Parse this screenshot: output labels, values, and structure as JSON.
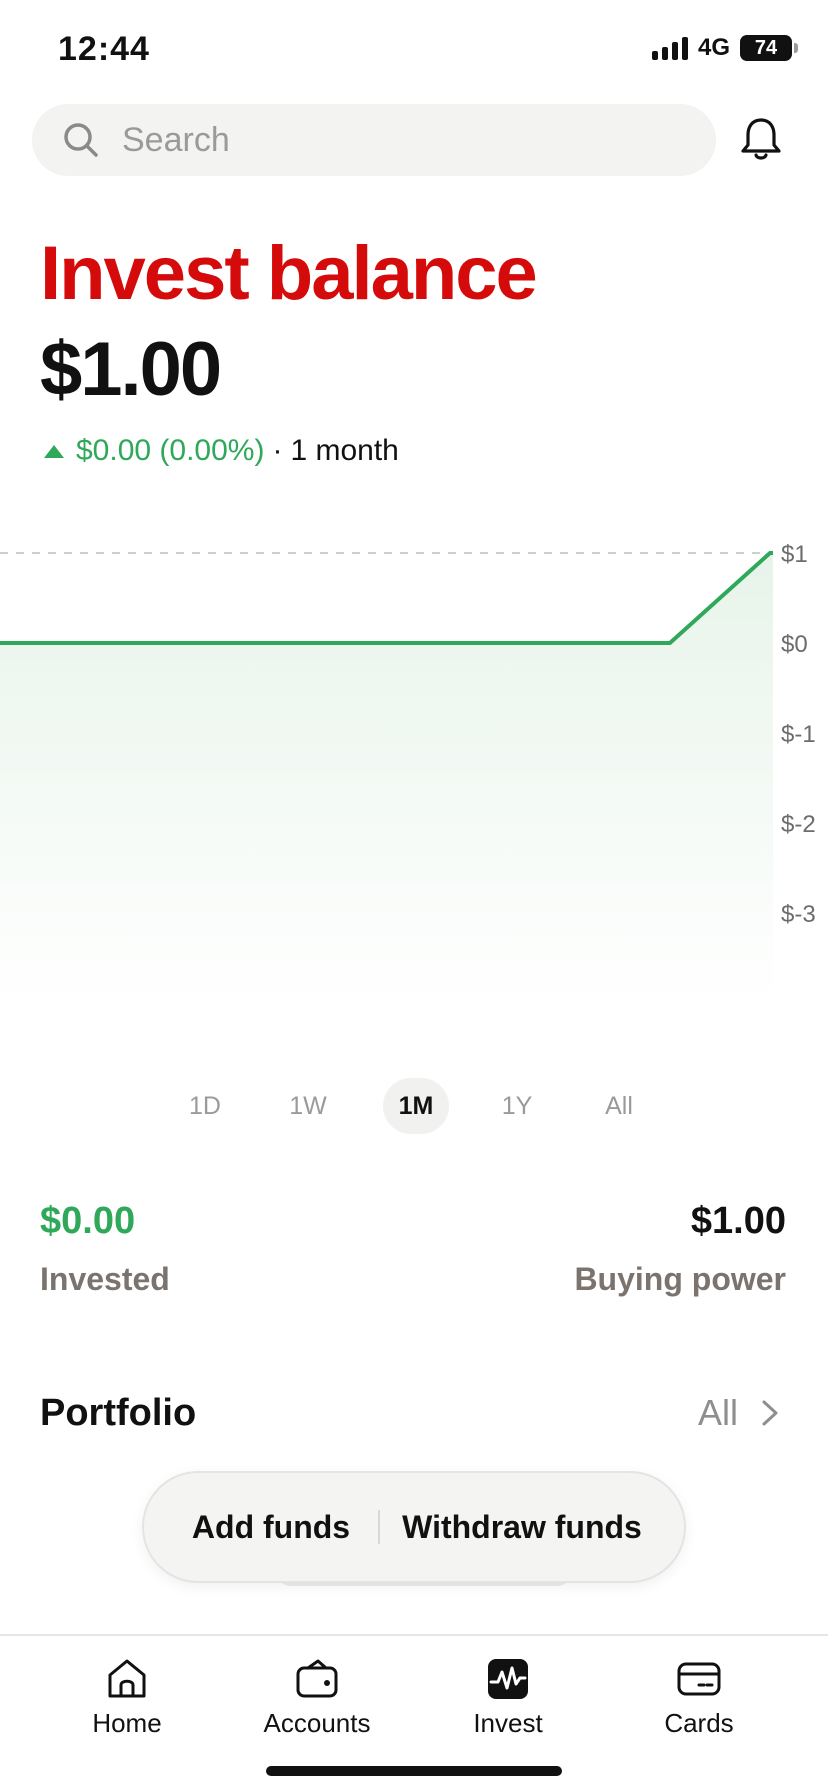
{
  "status_bar": {
    "time": "12:44",
    "network": "4G",
    "battery": "74"
  },
  "search": {
    "placeholder": "Search",
    "icon": "search-icon"
  },
  "header": {
    "title": "Invest balance",
    "balance": "$1.00",
    "change": "$0.00 (0.00%)",
    "separator": "·",
    "period": "1 month"
  },
  "colors": {
    "brand_red": "#d50b0b",
    "positive_green": "#2fa85a",
    "muted_label": "#7a736e"
  },
  "chart_data": {
    "type": "area",
    "y_ticks": [
      "$1",
      "$0",
      "$-1",
      "$-2",
      "$-3"
    ],
    "ylim": [
      -4,
      1
    ],
    "series": [
      {
        "x": [
          0,
          0.87,
          1.0
        ],
        "y": [
          0,
          0,
          1
        ]
      }
    ],
    "reference_line": 1,
    "grid": false
  },
  "ranges": {
    "selected": "1M",
    "items": [
      "1D",
      "1W",
      "1M",
      "1Y",
      "All"
    ]
  },
  "stats": {
    "invested_value": "$0.00",
    "invested_label": "Invested",
    "buying_power_value": "$1.00",
    "buying_power_label": "Buying power"
  },
  "portfolio": {
    "title": "Portfolio",
    "all_label": "All"
  },
  "funds_actions": {
    "add": "Add funds",
    "withdraw": "Withdraw funds"
  },
  "tabbar": {
    "items": [
      {
        "label": "Home",
        "icon": "home-icon"
      },
      {
        "label": "Accounts",
        "icon": "wallet-icon"
      },
      {
        "label": "Invest",
        "icon": "invest-icon",
        "active": true
      },
      {
        "label": "Cards",
        "icon": "card-icon"
      }
    ]
  }
}
